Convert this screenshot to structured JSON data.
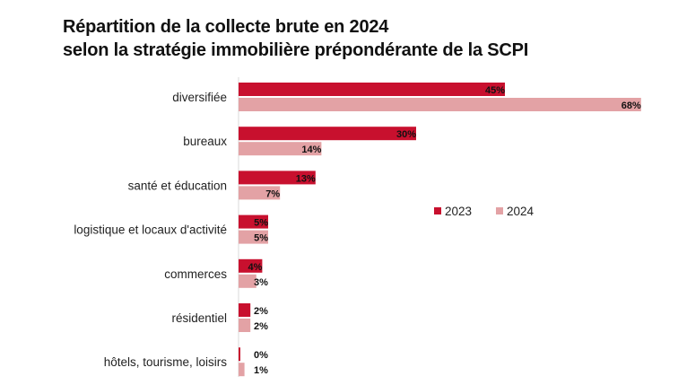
{
  "chart_data": {
    "type": "bar",
    "orientation": "horizontal",
    "title": [
      "Répartition de la collecte brute en 2024",
      "selon la stratégie immobilière prépondérante de la SCPI"
    ],
    "categories": [
      "diversifiée",
      "bureaux",
      "santé et éducation",
      "logistique et locaux d'activité",
      "commerces",
      "résidentiel",
      "hôtels, tourisme, loisirs"
    ],
    "series": [
      {
        "name": "2023",
        "color": "#c8102e",
        "values": [
          45,
          30,
          13,
          5,
          4,
          2,
          0
        ],
        "labels": [
          "45%",
          "30%",
          "13%",
          "5%",
          "4%",
          "2%",
          "0%"
        ]
      },
      {
        "name": "2024",
        "color": "#e3a2a5",
        "values": [
          68,
          14,
          7,
          5,
          3,
          2,
          1
        ],
        "labels": [
          "68%",
          "14%",
          "7%",
          "5%",
          "3%",
          "2%",
          "1%"
        ]
      }
    ],
    "unit": "%",
    "xlim": [
      0,
      70
    ],
    "grid": false,
    "legend": {
      "position": "right",
      "entries": [
        "2023",
        "2024"
      ]
    }
  }
}
